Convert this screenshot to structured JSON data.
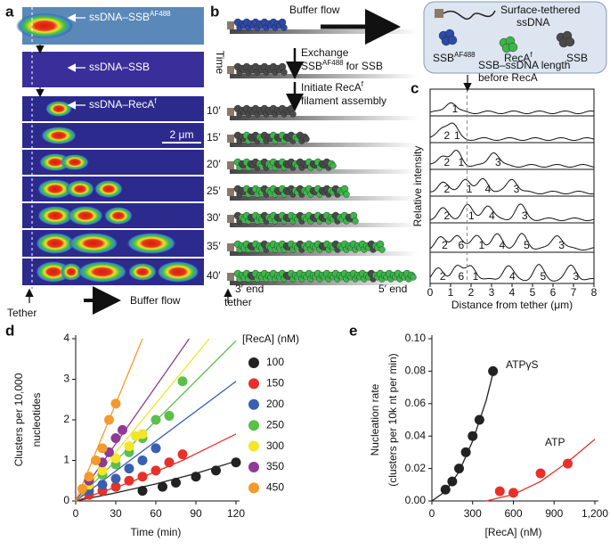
{
  "panel_a": {
    "label": "a",
    "strips": [
      {
        "text": "ssDNA–SSB",
        "sup": "AF488"
      },
      {
        "text": "ssDNA–SSB"
      },
      {
        "text": "ssDNA–RecA",
        "sup": "f"
      }
    ],
    "scale_bar": "2 μm",
    "tether": "Tether",
    "flow": "Buffer flow"
  },
  "panel_b": {
    "label": "b",
    "flow": "Buffer flow",
    "time": "Time",
    "exchange": {
      "line1": "Exchange",
      "text": "SSB",
      "sup": "AF488",
      "rest": "for SSB"
    },
    "initiate": {
      "line1": "Initiate",
      "text": "RecA",
      "sup": "f",
      "line2": "filament assembly"
    },
    "times": [
      "10′",
      "15′",
      "20′",
      "25′",
      "30′",
      "35′",
      "40′"
    ],
    "end3": [
      "3′ end",
      "tether"
    ],
    "end5": "5′ end",
    "legend": {
      "tethered": [
        "Surface-tethered",
        "ssDNA"
      ],
      "ssb_af": {
        "text": "SSB",
        "sup": "AF488"
      },
      "reca": {
        "text": "RecA",
        "sup": "f"
      },
      "ssb": "SSB"
    },
    "length_note": [
      "SSB–ssDNA length",
      "before RecA"
    ]
  },
  "panel_c": {
    "label": "c",
    "ylabel": "Relative intensity",
    "xlabel": "Distance from tether (μm)",
    "xlim": [
      0,
      8
    ],
    "xticks": [
      0,
      1,
      2,
      3,
      4,
      5,
      6,
      7,
      8
    ],
    "peak_labels": [
      [
        "1"
      ],
      [
        "2",
        "1"
      ],
      [
        "2",
        "1",
        "3"
      ],
      [
        "2",
        "1",
        "4",
        "3"
      ],
      [
        "2",
        "1",
        "4",
        "3"
      ],
      [
        "2",
        "6",
        "1",
        "4",
        "5",
        "3"
      ],
      [
        "2",
        "6",
        "1",
        "4",
        "5",
        "3"
      ]
    ]
  },
  "chart_data": [
    {
      "type": "scatter",
      "label": "d",
      "xlabel": "Time (min)",
      "ylabel": [
        "Clusters per 10,000",
        "nucleotides"
      ],
      "legend_title": "[RecA] (nM)",
      "xlim": [
        0,
        120
      ],
      "xticks": [
        0,
        30,
        60,
        90,
        120
      ],
      "ylim": [
        0,
        4
      ],
      "yticks": [
        0,
        1,
        2,
        3,
        4
      ],
      "series": [
        {
          "name": "100",
          "color": "#222222",
          "x": [
            50,
            65,
            75,
            90,
            105,
            120
          ],
          "values": [
            0.25,
            0.35,
            0.45,
            0.6,
            0.75,
            0.95
          ],
          "fit": {
            "x": [
              0,
              30,
              60,
              90,
              120
            ],
            "y": [
              0,
              0.2,
              0.42,
              0.68,
              0.98
            ]
          }
        },
        {
          "name": "150",
          "color": "#e8302a",
          "x": [
            10,
            20,
            30,
            40,
            50,
            60,
            70,
            80
          ],
          "values": [
            0.15,
            0.25,
            0.35,
            0.5,
            0.6,
            0.75,
            0.95,
            1.15
          ],
          "fit": {
            "x": [
              0,
              40,
              80,
              120
            ],
            "y": [
              0,
              0.45,
              1.0,
              1.65
            ]
          }
        },
        {
          "name": "200",
          "color": "#3a5fb0",
          "x": [
            10,
            20,
            30,
            40,
            50,
            60
          ],
          "values": [
            0.25,
            0.4,
            0.55,
            0.8,
            1.0,
            1.3
          ],
          "fit": {
            "x": [
              0,
              120
            ],
            "y": [
              0,
              2.95
            ]
          }
        },
        {
          "name": "250",
          "color": "#5cbf4a",
          "x": [
            20,
            30,
            40,
            50,
            60,
            70,
            80
          ],
          "values": [
            0.65,
            0.9,
            1.2,
            1.55,
            2.0,
            2.1,
            2.95
          ],
          "fit": {
            "x": [
              0,
              120
            ],
            "y": [
              0,
              3.95
            ]
          }
        },
        {
          "name": "300",
          "color": "#f2e52a",
          "x": [
            10,
            20,
            30,
            40,
            45,
            50
          ],
          "values": [
            0.4,
            0.75,
            1.05,
            1.35,
            1.6,
            1.65
          ],
          "fit": {
            "x": [
              0,
              100
            ],
            "y": [
              0,
              4
            ]
          }
        },
        {
          "name": "350",
          "color": "#8e3a96",
          "x": [
            10,
            20,
            25,
            30,
            35
          ],
          "values": [
            0.5,
            0.95,
            1.2,
            1.55,
            1.75
          ],
          "fit": {
            "x": [
              0,
              85
            ],
            "y": [
              0,
              4
            ]
          }
        },
        {
          "name": "450",
          "color": "#f39a2a",
          "x": [
            5,
            10,
            15,
            20,
            25,
            30
          ],
          "values": [
            0.3,
            0.6,
            1.0,
            1.3,
            2.0,
            2.4
          ],
          "fit": {
            "x": [
              0,
              50
            ],
            "y": [
              0,
              4
            ]
          }
        }
      ]
    },
    {
      "type": "scatter",
      "label": "e",
      "xlabel": "[RecA] (nM)",
      "ylabel": [
        "Nucleation rate",
        "(clusters per 10k nt per min)"
      ],
      "xlim": [
        0,
        1200
      ],
      "xticks": [
        0,
        300,
        600,
        900,
        {
          "value": 1200,
          "label": "1,200"
        }
      ],
      "ylim": [
        0,
        0.1
      ],
      "yticks": [
        {
          "value": 0,
          "label": "0.00"
        },
        0.02,
        0.04,
        0.06,
        0.08,
        {
          "value": 0.1,
          "label": "0.10"
        }
      ],
      "series": [
        {
          "name": "ATPγS",
          "color": "#222222",
          "x": [
            100,
            150,
            200,
            250,
            300,
            350,
            450
          ],
          "values": [
            0.007,
            0.012,
            0.02,
            0.03,
            0.04,
            0.05,
            0.08
          ],
          "fit": {
            "x": [
              0,
              100,
              200,
              300,
              400,
              460
            ],
            "y": [
              0,
              0.006,
              0.018,
              0.037,
              0.062,
              0.082
            ]
          }
        },
        {
          "name": "ATP",
          "color": "#e8302a",
          "x": [
            500,
            600,
            800,
            1000
          ],
          "values": [
            0.006,
            0.005,
            0.017,
            0.023
          ],
          "fit": {
            "x": [
              400,
              600,
              800,
              1000,
              1200
            ],
            "y": [
              0,
              0.004,
              0.012,
              0.024,
              0.038
            ]
          }
        }
      ]
    }
  ]
}
